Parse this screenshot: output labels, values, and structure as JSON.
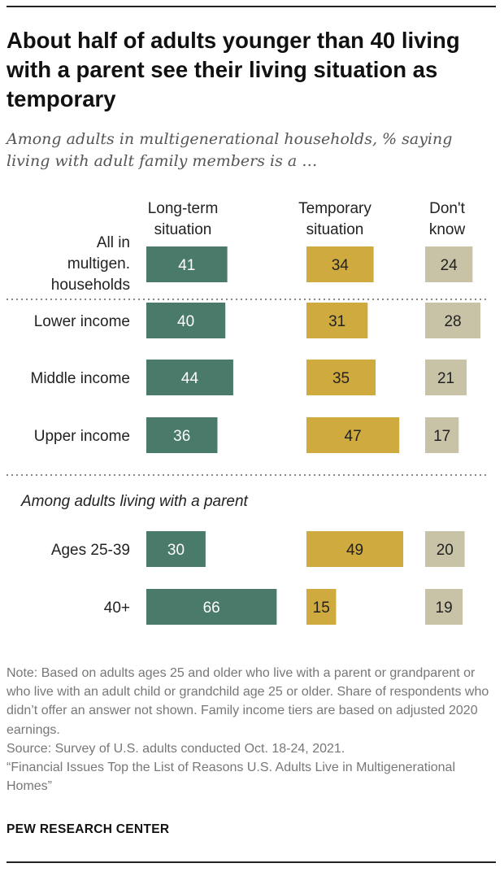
{
  "chart_data": {
    "type": "bar",
    "title": "About half of adults younger than 40 living with a parent see their living situation as temporary",
    "subtitle": "Among adults in multigenerational households, % saying living with adult family members is a …",
    "series": [
      {
        "name": "Long-term situation",
        "color": "#4a7a69",
        "values": [
          41,
          40,
          44,
          36,
          30,
          66
        ]
      },
      {
        "name": "Temporary situation",
        "color": "#cfaa3f",
        "values": [
          34,
          31,
          35,
          47,
          49,
          15
        ]
      },
      {
        "name": "Don't know",
        "color": "#c8c3a6",
        "values": [
          24,
          28,
          21,
          17,
          20,
          19
        ]
      }
    ],
    "categories": [
      "All in multigen. households",
      "Lower income",
      "Middle income",
      "Upper income",
      "Ages 25-39",
      "40+"
    ],
    "group_label": "Among adults living with a parent",
    "xlim": [
      0,
      100
    ]
  },
  "header": {
    "col1": "Long-term situation",
    "col2": "Temporary situation",
    "col3": "Don't know"
  },
  "note": "Note: Based on adults ages 25 and older who live with a parent or grandparent or who live with an adult child or grandchild age 25 or older. Share of respondents who didn’t offer an answer not shown. Family income tiers are based on adjusted 2020 earnings.\nSource: Survey of U.S. adults conducted Oct. 18-24, 2021.\n“Financial Issues Top the List of Reasons U.S. Adults Live in Multigenerational Homes”",
  "brand": "PEW RESEARCH CENTER"
}
